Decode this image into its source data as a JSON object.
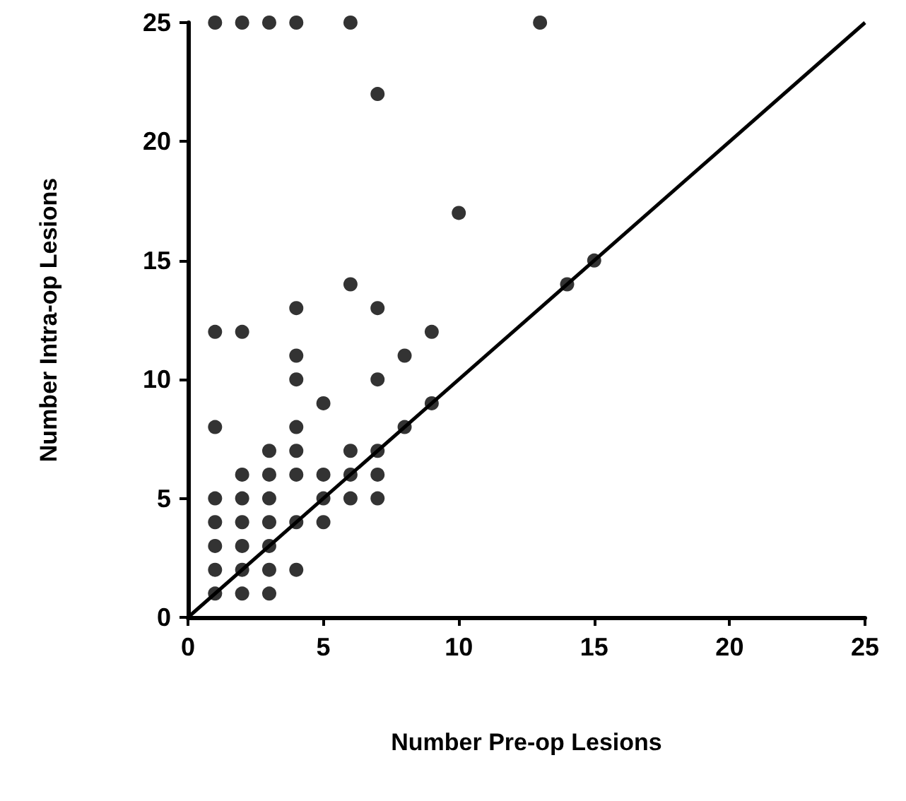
{
  "chart_data": {
    "type": "scatter",
    "xlabel": "Number Pre-op Lesions",
    "ylabel": "Number Intra-op Lesions",
    "xlim": [
      0,
      25
    ],
    "ylim": [
      0,
      25
    ],
    "xticks": [
      0,
      5,
      10,
      15,
      20,
      25
    ],
    "yticks": [
      0,
      5,
      10,
      15,
      20,
      25
    ],
    "marker": "circle",
    "series": [
      {
        "color": "#000000",
        "x": [
          1,
          1,
          1,
          1,
          1,
          1,
          1,
          1,
          2,
          2,
          2,
          2,
          2,
          2,
          2,
          2,
          3,
          3,
          3,
          3,
          3,
          3,
          3,
          3,
          4,
          4,
          4,
          4,
          4,
          4,
          4,
          4,
          4,
          5,
          5,
          5,
          5,
          6,
          6,
          6,
          6,
          6,
          7,
          7,
          7,
          7,
          7,
          7,
          8,
          8,
          9,
          9,
          10,
          13,
          14,
          15
        ],
        "values": [
          1,
          2,
          3,
          4,
          5,
          8,
          12,
          25,
          1,
          2,
          3,
          4,
          5,
          6,
          12,
          25,
          1,
          2,
          3,
          4,
          5,
          6,
          7,
          25,
          2,
          4,
          6,
          7,
          8,
          10,
          11,
          13,
          25,
          4,
          5,
          6,
          9,
          5,
          6,
          7,
          14,
          25,
          5,
          6,
          7,
          10,
          13,
          22,
          8,
          11,
          9,
          12,
          17,
          25,
          14,
          15
        ]
      },
      {
        "type": "line",
        "color": "#000000",
        "x": [
          0,
          25
        ],
        "values": [
          0,
          25
        ],
        "marker": "none",
        "line_style": "solid"
      }
    ]
  }
}
